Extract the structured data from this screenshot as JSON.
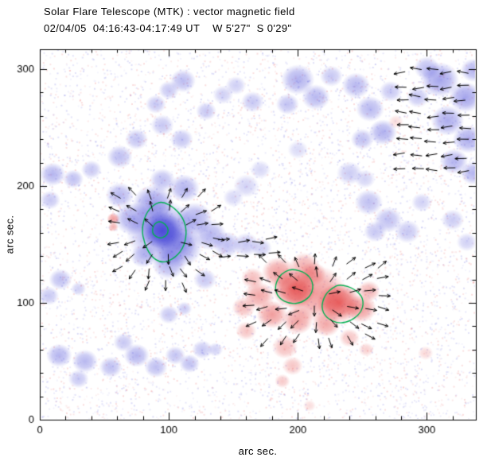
{
  "figure": {
    "title_line1": "Solar Flare Telescope (MTK) : vector magnetic field",
    "title_line2": "02/04/05  04:16:43-04:17:49 UT    W 5'27\"  S 0'29\"",
    "x_axis_label": "arc sec.",
    "y_axis_label": "arc sec."
  },
  "chart_data": {
    "type": "heatmap",
    "title": "Solar Flare Telescope (MTK) : vector magnetic field",
    "subtitle": "02/04/05  04:16:43-04:17:49 UT    W 5'27\"  S 0'29\"",
    "xlabel": "arc sec.",
    "ylabel": "arc sec.",
    "x_range": [
      0,
      338
    ],
    "y_range": [
      0,
      317
    ],
    "x_ticks": [
      0,
      100,
      200,
      300
    ],
    "y_ticks": [
      0,
      100,
      200,
      300
    ],
    "minor_tick_step": 20,
    "grid": false,
    "colors": {
      "negative": "#4343d6",
      "positive": "#e23a3a",
      "contour": "#00b050",
      "vector": "#000000",
      "frame": "#000000",
      "background": "#ffffff"
    },
    "noise": {
      "seed": 7,
      "count": 6000,
      "blue_fraction": 0.58,
      "alpha": 0.14
    },
    "blobs": [
      [
        95,
        162,
        16,
        "n",
        0.92
      ],
      [
        95,
        160,
        28,
        "n",
        0.5
      ],
      [
        88,
        185,
        16,
        "n",
        0.5
      ],
      [
        108,
        148,
        18,
        "n",
        0.5
      ],
      [
        72,
        172,
        14,
        "n",
        0.45
      ],
      [
        120,
        172,
        14,
        "n",
        0.42
      ],
      [
        100,
        133,
        13,
        "n",
        0.4
      ],
      [
        132,
        158,
        13,
        "n",
        0.4
      ],
      [
        62,
        192,
        11,
        "n",
        0.38
      ],
      [
        80,
        140,
        10,
        "n",
        0.35
      ],
      [
        145,
        150,
        11,
        "n",
        0.34
      ],
      [
        160,
        150,
        10,
        "n",
        0.3
      ],
      [
        172,
        147,
        8,
        "n",
        0.26
      ],
      [
        128,
        120,
        9,
        "n",
        0.3
      ],
      [
        112,
        198,
        12,
        "n",
        0.4
      ],
      [
        95,
        205,
        10,
        "n",
        0.35
      ],
      [
        62,
        225,
        10,
        "n",
        0.35
      ],
      [
        75,
        240,
        9,
        "n",
        0.32
      ],
      [
        95,
        252,
        9,
        "n",
        0.3
      ],
      [
        110,
        240,
        9,
        "n",
        0.32
      ],
      [
        90,
        270,
        8,
        "n",
        0.3
      ],
      [
        111,
        290,
        10,
        "n",
        0.36
      ],
      [
        100,
        282,
        8,
        "n",
        0.3
      ],
      [
        129,
        264,
        8,
        "n",
        0.3
      ],
      [
        142,
        278,
        8,
        "n",
        0.26
      ],
      [
        10,
        210,
        10,
        "n",
        0.4
      ],
      [
        26,
        206,
        8,
        "n",
        0.34
      ],
      [
        40,
        214,
        8,
        "n",
        0.3
      ],
      [
        8,
        188,
        8,
        "n",
        0.3
      ],
      [
        16,
        120,
        9,
        "n",
        0.34
      ],
      [
        7,
        106,
        8,
        "n",
        0.3
      ],
      [
        30,
        112,
        6,
        "n",
        0.25
      ],
      [
        152,
        286,
        8,
        "n",
        0.26
      ],
      [
        165,
        272,
        9,
        "n",
        0.3
      ],
      [
        200,
        291,
        13,
        "n",
        0.42
      ],
      [
        214,
        276,
        11,
        "n",
        0.38
      ],
      [
        192,
        270,
        9,
        "n",
        0.33
      ],
      [
        226,
        294,
        9,
        "n",
        0.3
      ],
      [
        245,
        286,
        11,
        "n",
        0.38
      ],
      [
        256,
        266,
        11,
        "n",
        0.38
      ],
      [
        266,
        246,
        11,
        "n",
        0.42
      ],
      [
        250,
        240,
        9,
        "n",
        0.34
      ],
      [
        272,
        281,
        9,
        "n",
        0.3
      ],
      [
        310,
        291,
        15,
        "n",
        0.48
      ],
      [
        330,
        276,
        13,
        "n",
        0.48
      ],
      [
        316,
        256,
        13,
        "n",
        0.44
      ],
      [
        332,
        240,
        12,
        "n",
        0.44
      ],
      [
        321,
        221,
        11,
        "n",
        0.4
      ],
      [
        336,
        211,
        10,
        "n",
        0.4
      ],
      [
        300,
        301,
        10,
        "n",
        0.35
      ],
      [
        336,
        299,
        10,
        "n",
        0.4
      ],
      [
        293,
        276,
        9,
        "n",
        0.3
      ],
      [
        255,
        186,
        11,
        "n",
        0.34
      ],
      [
        270,
        171,
        11,
        "n",
        0.34
      ],
      [
        285,
        161,
        10,
        "n",
        0.3
      ],
      [
        260,
        161,
        9,
        "n",
        0.3
      ],
      [
        296,
        186,
        8,
        "n",
        0.25
      ],
      [
        320,
        171,
        9,
        "n",
        0.28
      ],
      [
        331,
        152,
        8,
        "n",
        0.25
      ],
      [
        160,
        200,
        10,
        "n",
        0.24
      ],
      [
        171,
        214,
        8,
        "n",
        0.22
      ],
      [
        150,
        190,
        8,
        "n",
        0.22
      ],
      [
        240,
        211,
        10,
        "n",
        0.28
      ],
      [
        252,
        206,
        8,
        "n",
        0.24
      ],
      [
        200,
        231,
        8,
        "n",
        0.2
      ],
      [
        15,
        55,
        10,
        "n",
        0.4
      ],
      [
        35,
        50,
        10,
        "n",
        0.38
      ],
      [
        55,
        45,
        9,
        "n",
        0.35
      ],
      [
        75,
        55,
        10,
        "n",
        0.4
      ],
      [
        90,
        45,
        9,
        "n",
        0.35
      ],
      [
        105,
        55,
        8,
        "n",
        0.32
      ],
      [
        65,
        66,
        8,
        "n",
        0.3
      ],
      [
        30,
        35,
        8,
        "n",
        0.3
      ],
      [
        116,
        48,
        8,
        "n",
        0.34
      ],
      [
        126,
        60,
        8,
        "n",
        0.3
      ],
      [
        100,
        90,
        8,
        "n",
        0.3
      ],
      [
        112,
        95,
        6,
        "n",
        0.28
      ],
      [
        136,
        60,
        6,
        "n",
        0.25
      ],
      [
        197,
        112,
        17,
        "p",
        0.78
      ],
      [
        232,
        100,
        17,
        "p",
        0.8
      ],
      [
        214,
        108,
        24,
        "p",
        0.5
      ],
      [
        185,
        126,
        13,
        "p",
        0.48
      ],
      [
        205,
        131,
        12,
        "p",
        0.42
      ],
      [
        170,
        106,
        12,
        "p",
        0.45
      ],
      [
        180,
        90,
        12,
        "p",
        0.5
      ],
      [
        200,
        85,
        12,
        "p",
        0.48
      ],
      [
        222,
        82,
        11,
        "p",
        0.45
      ],
      [
        249,
        95,
        12,
        "p",
        0.5
      ],
      [
        255,
        110,
        9,
        "p",
        0.38
      ],
      [
        165,
        121,
        9,
        "p",
        0.34
      ],
      [
        158,
        96,
        9,
        "p",
        0.34
      ],
      [
        190,
        62,
        10,
        "p",
        0.34
      ],
      [
        196,
        46,
        8,
        "p",
        0.3
      ],
      [
        188,
        33,
        6,
        "p",
        0.28
      ],
      [
        240,
        70,
        8,
        "p",
        0.3
      ],
      [
        253,
        60,
        6,
        "p",
        0.24
      ],
      [
        160,
        76,
        8,
        "p",
        0.3
      ],
      [
        212,
        125,
        10,
        "p",
        0.4
      ],
      [
        57,
        172,
        5,
        "p",
        0.5
      ],
      [
        57,
        165,
        4,
        "p",
        0.4
      ],
      [
        276,
        255,
        6,
        "p",
        0.18
      ],
      [
        299,
        57,
        6,
        "p",
        0.2
      ],
      [
        209,
        12,
        5,
        "p",
        0.18
      ]
    ],
    "contours": [
      {
        "points": [
          [
            95,
            187
          ],
          [
            105,
            181
          ],
          [
            112,
            171
          ],
          [
            114,
            159
          ],
          [
            111,
            146
          ],
          [
            103,
            137
          ],
          [
            94,
            134
          ],
          [
            86,
            140
          ],
          [
            81,
            151
          ],
          [
            79,
            163
          ],
          [
            82,
            176
          ],
          [
            88,
            184
          ]
        ]
      },
      {
        "points": [
          [
            93,
            170
          ],
          [
            98,
            167
          ],
          [
            100,
            162
          ],
          [
            98,
            157
          ],
          [
            93,
            155
          ],
          [
            88,
            158
          ],
          [
            87,
            163
          ],
          [
            89,
            168
          ]
        ]
      },
      {
        "points": [
          [
            196,
            129
          ],
          [
            206,
            126
          ],
          [
            212,
            118
          ],
          [
            211,
            107
          ],
          [
            203,
            100
          ],
          [
            194,
            99
          ],
          [
            185,
            104
          ],
          [
            182,
            113
          ],
          [
            185,
            122
          ],
          [
            190,
            127
          ]
        ]
      },
      {
        "points": [
          [
            233,
            116
          ],
          [
            244,
            112
          ],
          [
            251,
            104
          ],
          [
            250,
            93
          ],
          [
            242,
            85
          ],
          [
            232,
            82
          ],
          [
            222,
            87
          ],
          [
            218,
            96
          ],
          [
            221,
            107
          ],
          [
            227,
            113
          ]
        ]
      }
    ],
    "vector_clusters": [
      {
        "mode": "radial",
        "cx": 95,
        "cy": 160,
        "x0": 63,
        "x1": 135,
        "y0": 118,
        "y1": 198,
        "step": 12,
        "min_r": 8,
        "max_r": 46,
        "len": 9
      },
      {
        "mode": "uniform",
        "angle": 0,
        "x0": 140,
        "x1": 178,
        "y0": 141,
        "y1": 157,
        "step": 12,
        "len": 9
      },
      {
        "mode": "radial",
        "cx": 215,
        "cy": 104,
        "x0": 166,
        "x1": 268,
        "y0": 72,
        "y1": 142,
        "step": 12,
        "min_r": 6,
        "max_r": 56,
        "len": 9
      },
      {
        "mode": "uniform",
        "angle": 180,
        "x0": 284,
        "x1": 336,
        "y0": 214,
        "y1": 300,
        "step": 12,
        "len": 9
      }
    ],
    "jitter_seed": 11
  }
}
